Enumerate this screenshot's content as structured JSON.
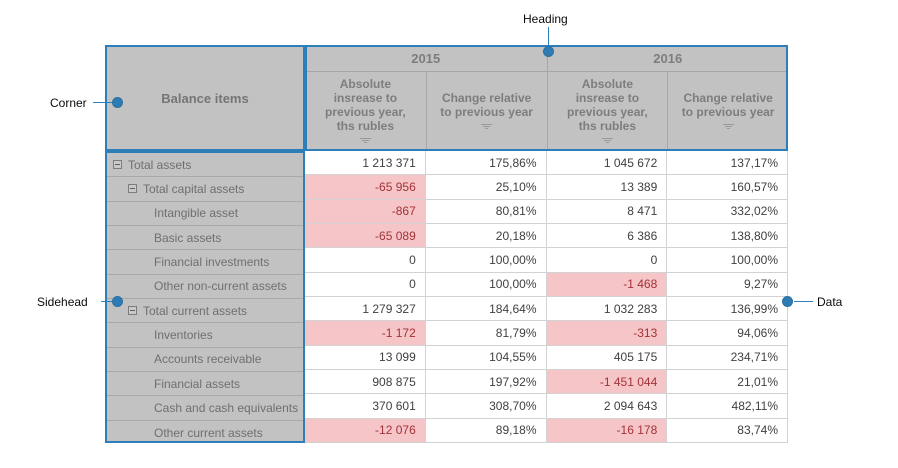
{
  "annotations": {
    "heading_label": "Heading",
    "corner_label": "Corner",
    "sidehead_label": "Sidehead",
    "data_label": "Data"
  },
  "pivot": {
    "corner": "Balance items",
    "year_groups": [
      {
        "year": "2015",
        "columns": [
          "Absolute insrease to previous year, ths rubles",
          "Change relative to previous year"
        ]
      },
      {
        "year": "2016",
        "columns": [
          "Absolute insrease to previous year, ths rubles",
          "Change relative to previous year"
        ]
      }
    ],
    "rows": [
      {
        "label": "Total assets",
        "level": 0,
        "expandable": true,
        "cells": [
          {
            "v": "1 213 371",
            "neg": false
          },
          {
            "v": "175,86%",
            "neg": false
          },
          {
            "v": "1 045 672",
            "neg": false
          },
          {
            "v": "137,17%",
            "neg": false
          }
        ]
      },
      {
        "label": "Total capital assets",
        "level": 1,
        "expandable": true,
        "cells": [
          {
            "v": "-65 956",
            "neg": true
          },
          {
            "v": "25,10%",
            "neg": false
          },
          {
            "v": "13 389",
            "neg": false
          },
          {
            "v": "160,57%",
            "neg": false
          }
        ]
      },
      {
        "label": "Intangible asset",
        "level": 2,
        "expandable": false,
        "cells": [
          {
            "v": "-867",
            "neg": true
          },
          {
            "v": "80,81%",
            "neg": false
          },
          {
            "v": "8 471",
            "neg": false
          },
          {
            "v": "332,02%",
            "neg": false
          }
        ]
      },
      {
        "label": "Basic assets",
        "level": 2,
        "expandable": false,
        "cells": [
          {
            "v": "-65 089",
            "neg": true
          },
          {
            "v": "20,18%",
            "neg": false
          },
          {
            "v": "6 386",
            "neg": false
          },
          {
            "v": "138,80%",
            "neg": false
          }
        ]
      },
      {
        "label": "Financial investments",
        "level": 2,
        "expandable": false,
        "cells": [
          {
            "v": "0",
            "neg": false
          },
          {
            "v": "100,00%",
            "neg": false
          },
          {
            "v": "0",
            "neg": false
          },
          {
            "v": "100,00%",
            "neg": false
          }
        ]
      },
      {
        "label": "Other non-current assets",
        "level": 2,
        "expandable": false,
        "cells": [
          {
            "v": "0",
            "neg": false
          },
          {
            "v": "100,00%",
            "neg": false
          },
          {
            "v": "-1 468",
            "neg": true
          },
          {
            "v": "9,27%",
            "neg": false
          }
        ]
      },
      {
        "label": "Total current assets",
        "level": 1,
        "expandable": true,
        "cells": [
          {
            "v": "1 279 327",
            "neg": false
          },
          {
            "v": "184,64%",
            "neg": false
          },
          {
            "v": "1 032 283",
            "neg": false
          },
          {
            "v": "136,99%",
            "neg": false
          }
        ]
      },
      {
        "label": "Inventories",
        "level": 2,
        "expandable": false,
        "cells": [
          {
            "v": "-1 172",
            "neg": true
          },
          {
            "v": "81,79%",
            "neg": false
          },
          {
            "v": "-313",
            "neg": true
          },
          {
            "v": "94,06%",
            "neg": false
          }
        ]
      },
      {
        "label": "Accounts receivable",
        "level": 2,
        "expandable": false,
        "cells": [
          {
            "v": "13 099",
            "neg": false
          },
          {
            "v": "104,55%",
            "neg": false
          },
          {
            "v": "405 175",
            "neg": false
          },
          {
            "v": "234,71%",
            "neg": false
          }
        ]
      },
      {
        "label": "Financial assets",
        "level": 2,
        "expandable": false,
        "cells": [
          {
            "v": "908 875",
            "neg": false
          },
          {
            "v": "197,92%",
            "neg": false
          },
          {
            "v": "-1 451 044",
            "neg": true
          },
          {
            "v": "21,01%",
            "neg": false
          }
        ]
      },
      {
        "label": "Cash and cash equivalents",
        "level": 2,
        "expandable": false,
        "cells": [
          {
            "v": "370 601",
            "neg": false
          },
          {
            "v": "308,70%",
            "neg": false
          },
          {
            "v": "2 094 643",
            "neg": false
          },
          {
            "v": "482,11%",
            "neg": false
          }
        ]
      },
      {
        "label": "Other current assets",
        "level": 2,
        "expandable": false,
        "cells": [
          {
            "v": "-12 076",
            "neg": true
          },
          {
            "v": "89,18%",
            "neg": false
          },
          {
            "v": "-16 178",
            "neg": true
          },
          {
            "v": "83,74%",
            "neg": false
          }
        ]
      }
    ]
  },
  "colors": {
    "accent_blue": "#2d7fba",
    "header_background": "#c2c2c2",
    "header_text": "#7d7d7d",
    "negative_cell_background": "#f5c5c7",
    "negative_cell_text": "#a2333a",
    "data_text": "#3f3f3f",
    "grid_line": "#d2d2d2"
  }
}
